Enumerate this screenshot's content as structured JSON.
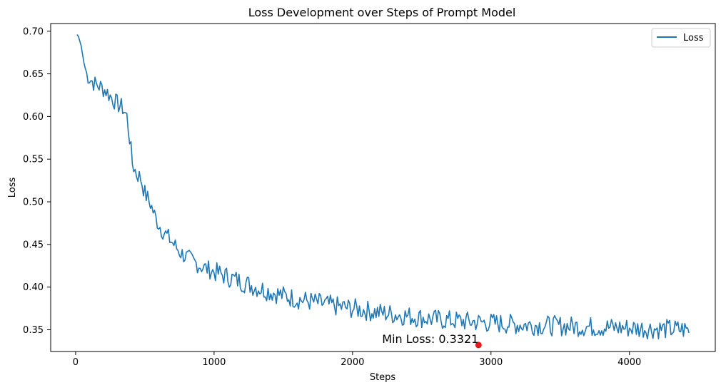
{
  "chart_data": {
    "type": "line",
    "title": "Loss Development over Steps of Prompt Model",
    "xlabel": "Steps",
    "ylabel": "Loss",
    "xlim": [
      -180,
      4620
    ],
    "ylim": [
      0.3245,
      0.709
    ],
    "xticks": [
      0,
      1000,
      2000,
      3000,
      4000
    ],
    "yticks": [
      0.35,
      0.4,
      0.45,
      0.5,
      0.55,
      0.6,
      0.65,
      0.7
    ],
    "ytick_labels": [
      "0.35",
      "0.40",
      "0.45",
      "0.50",
      "0.55",
      "0.60",
      "0.65",
      "0.70"
    ],
    "grid": false,
    "legend": {
      "position": "top-right",
      "entries": [
        "Loss"
      ]
    },
    "series": [
      {
        "name": "Loss",
        "color": "#1f77b4",
        "x_start": 10,
        "x_step": 10,
        "x_end": 4430,
        "keypoints": [
          [
            10,
            0.696
          ],
          [
            20,
            0.694
          ],
          [
            40,
            0.683
          ],
          [
            60,
            0.663
          ],
          [
            80,
            0.65
          ],
          [
            100,
            0.645
          ],
          [
            140,
            0.638
          ],
          [
            180,
            0.635
          ],
          [
            220,
            0.63
          ],
          [
            260,
            0.622
          ],
          [
            300,
            0.615
          ],
          [
            340,
            0.61
          ],
          [
            370,
            0.6
          ],
          [
            390,
            0.575
          ],
          [
            410,
            0.545
          ],
          [
            440,
            0.533
          ],
          [
            470,
            0.528
          ],
          [
            500,
            0.51
          ],
          [
            540,
            0.498
          ],
          [
            580,
            0.48
          ],
          [
            620,
            0.468
          ],
          [
            660,
            0.46
          ],
          [
            700,
            0.452
          ],
          [
            760,
            0.44
          ],
          [
            820,
            0.433
          ],
          [
            900,
            0.425
          ],
          [
            1000,
            0.418
          ],
          [
            1100,
            0.412
          ],
          [
            1200,
            0.406
          ],
          [
            1300,
            0.4
          ],
          [
            1400,
            0.395
          ],
          [
            1500,
            0.39
          ],
          [
            1600,
            0.386
          ],
          [
            1700,
            0.383
          ],
          [
            1800,
            0.38
          ],
          [
            1900,
            0.377
          ],
          [
            2000,
            0.375
          ],
          [
            2200,
            0.37
          ],
          [
            2400,
            0.366
          ],
          [
            2600,
            0.362
          ],
          [
            2800,
            0.36
          ],
          [
            3000,
            0.358
          ],
          [
            3200,
            0.356
          ],
          [
            3400,
            0.355
          ],
          [
            3600,
            0.354
          ],
          [
            3800,
            0.353
          ],
          [
            4000,
            0.352
          ],
          [
            4200,
            0.351
          ],
          [
            4430,
            0.35
          ]
        ],
        "noise_amplitude": 0.012,
        "noise_seed": 7
      }
    ],
    "min_point": {
      "x": 2910,
      "y": 0.3321,
      "color": "#e41a1c"
    },
    "annotation": {
      "text": "Min Loss: 0.3321",
      "x": 2910,
      "y": 0.3321
    }
  }
}
